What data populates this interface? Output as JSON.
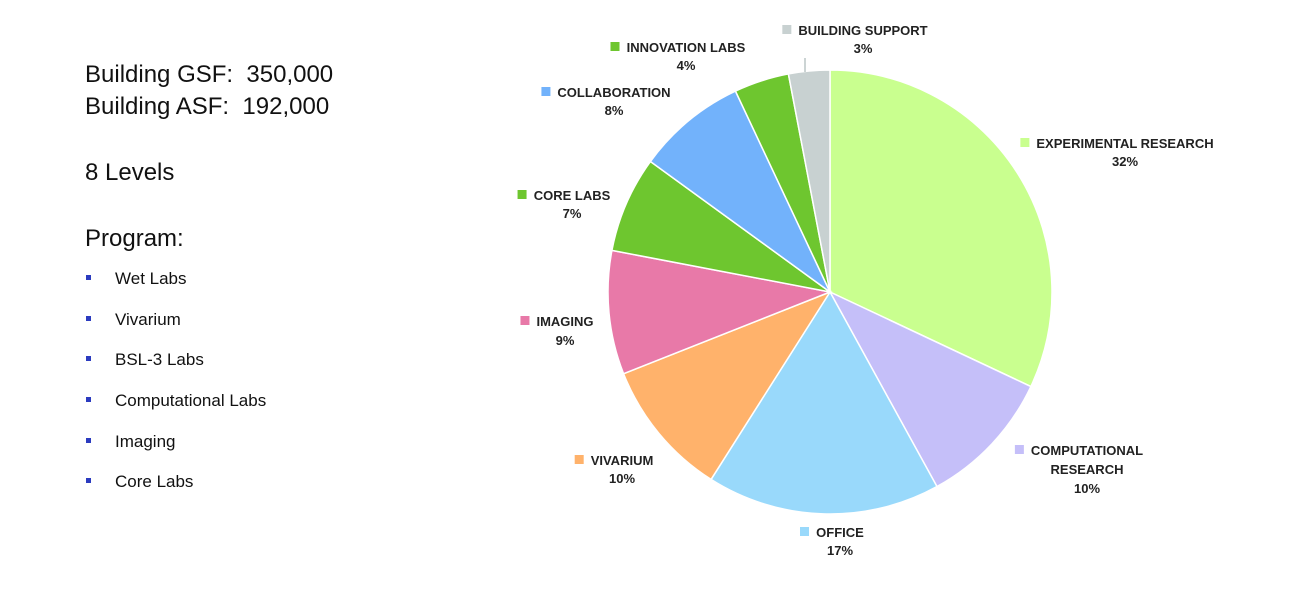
{
  "info": {
    "gsf": "Building GSF:  350,000",
    "asf": "Building ASF:  192,000",
    "levels": "8 Levels",
    "program_heading": "Program:",
    "program_items": [
      "Wet Labs",
      "Vivarium",
      "BSL-3 Labs",
      "Computational Labs",
      "Imaging",
      "Core Labs"
    ]
  },
  "chart_data": {
    "type": "pie",
    "categories": [
      "EXPERIMENTAL RESEARCH",
      "COMPUTATIONAL RESEARCH",
      "OFFICE",
      "VIVARIUM",
      "IMAGING",
      "CORE LABS",
      "COLLABORATION",
      "INNOVATION LABS",
      "BUILDING SUPPORT"
    ],
    "values": [
      32,
      10,
      17,
      10,
      9,
      7,
      8,
      4,
      3
    ],
    "value_labels": [
      "32%",
      "10%",
      "17%",
      "10%",
      "9%",
      "7%",
      "8%",
      "4%",
      "3%"
    ],
    "colors": [
      "#c9ff8f",
      "#c5bff9",
      "#99d9fb",
      "#ffb26b",
      "#e879a8",
      "#6ec62f",
      "#72b2fb",
      "#6ec62f",
      "#c8d1d1"
    ],
    "start_angle": "12 o'clock, clockwise",
    "legend": "outside labels with color squares"
  }
}
